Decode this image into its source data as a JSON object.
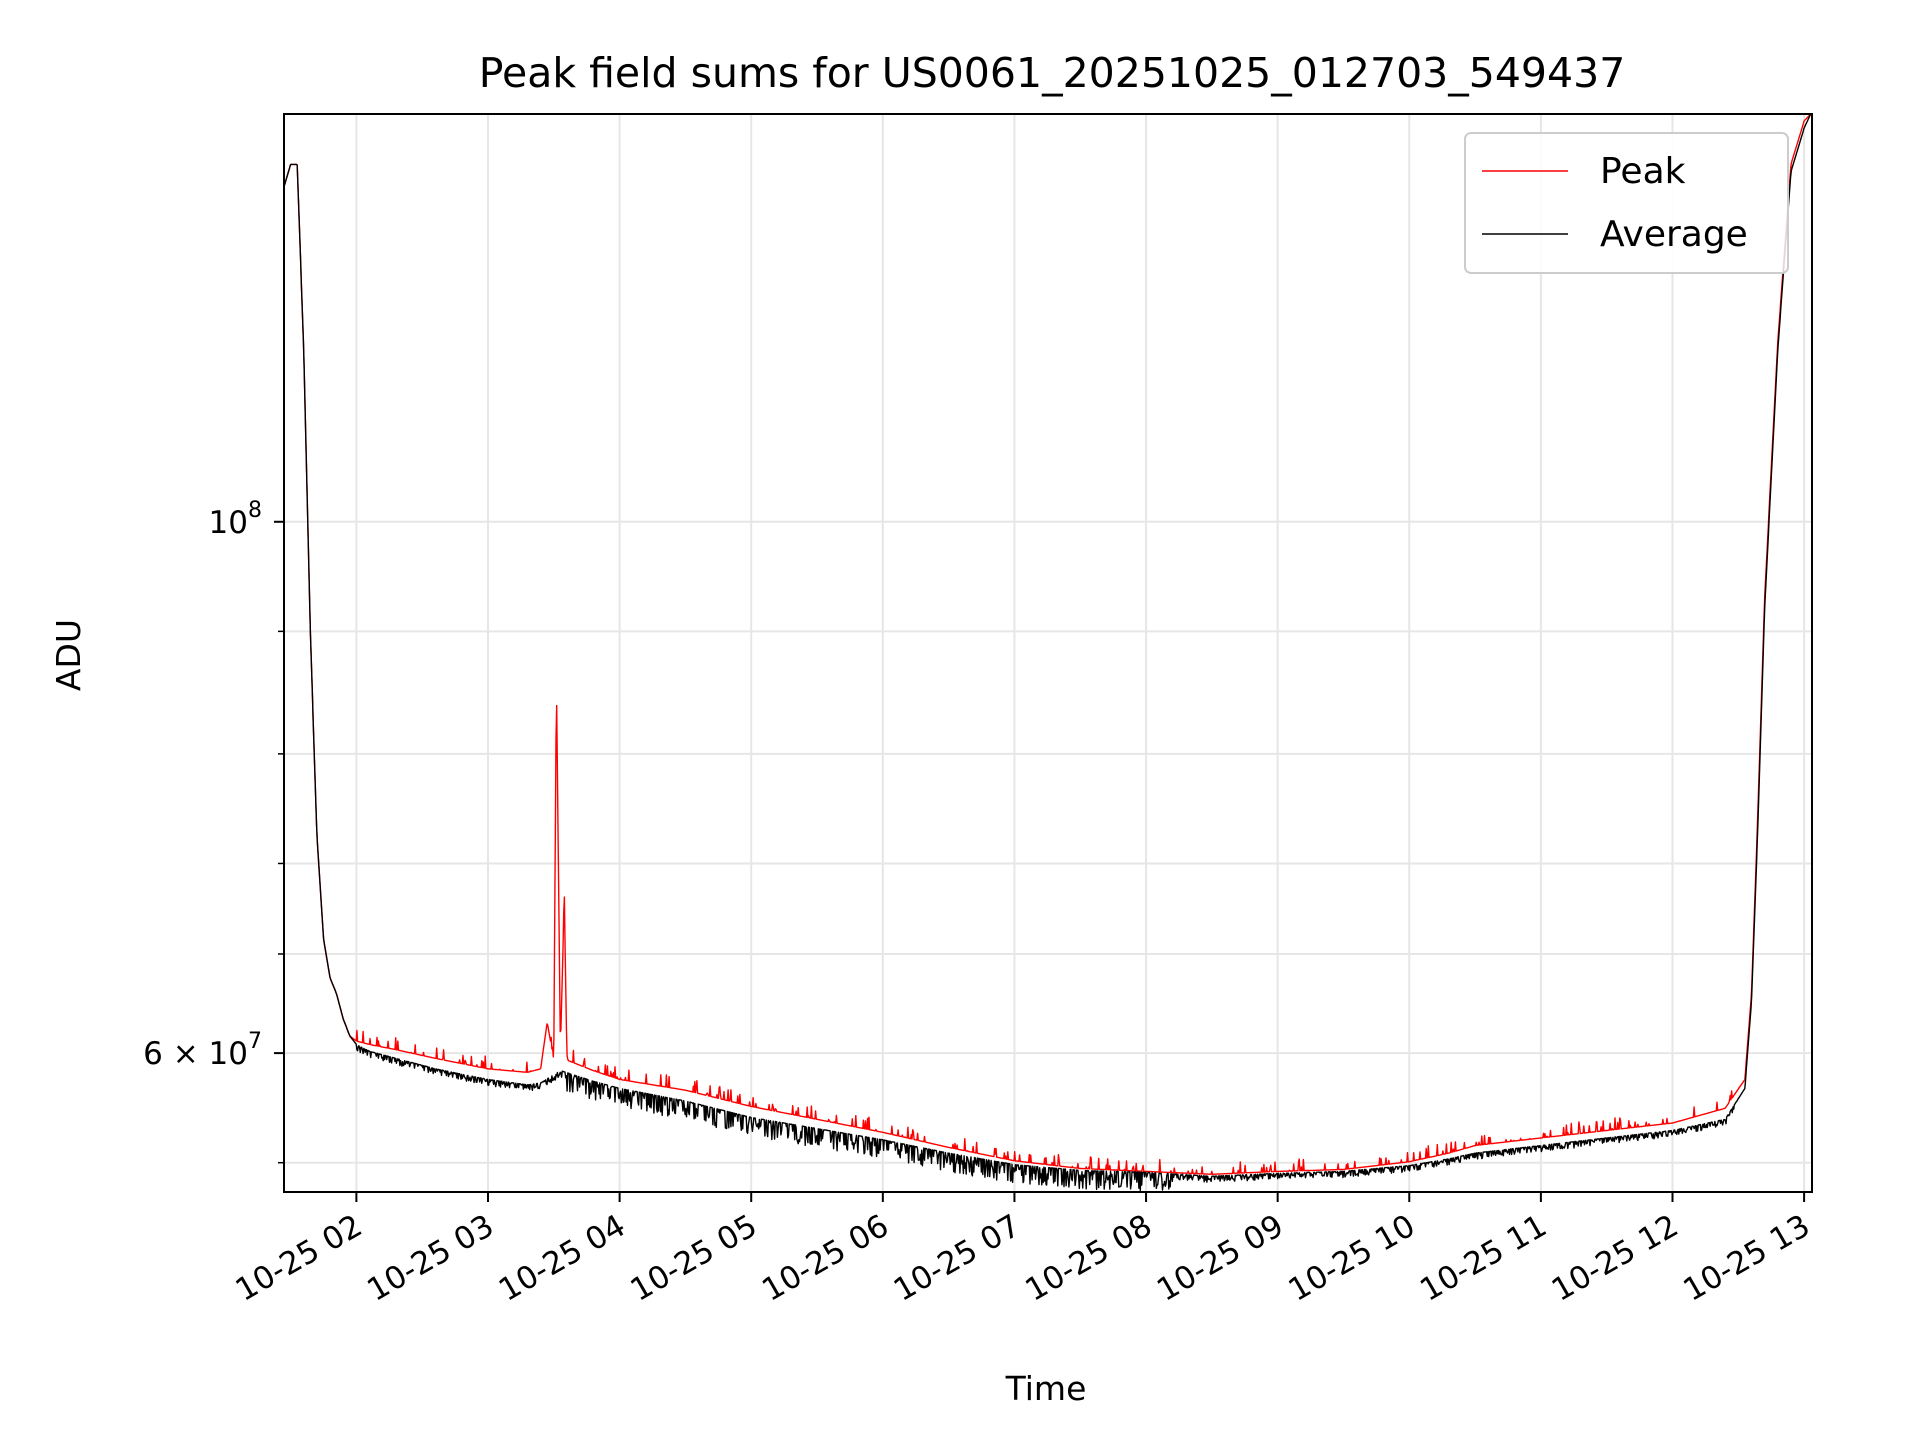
{
  "chart_data": {
    "type": "line",
    "title": "Peak field sums for US0061_20251025_012703_549437",
    "xlabel": "Time",
    "ylabel": "ADU",
    "yscale": "log",
    "xlim": [
      1.45,
      13.06
    ],
    "ylim": [
      52500000,
      148000000
    ],
    "grid": true,
    "legend": {
      "position": "top-right",
      "entries": [
        "Peak",
        "Average"
      ]
    },
    "x_ticks": [
      {
        "value": 2,
        "label": "10-25 02"
      },
      {
        "value": 3,
        "label": "10-25 03"
      },
      {
        "value": 4,
        "label": "10-25 04"
      },
      {
        "value": 5,
        "label": "10-25 05"
      },
      {
        "value": 6,
        "label": "10-25 06"
      },
      {
        "value": 7,
        "label": "10-25 07"
      },
      {
        "value": 8,
        "label": "10-25 08"
      },
      {
        "value": 9,
        "label": "10-25 09"
      },
      {
        "value": 10,
        "label": "10-25 10"
      },
      {
        "value": 11,
        "label": "10-25 11"
      },
      {
        "value": 12,
        "label": "10-25 12"
      },
      {
        "value": 13,
        "label": "10-25 13"
      }
    ],
    "y_major_ticks": [
      {
        "value": 100000000,
        "base": "10",
        "exp": "8",
        "prefix": ""
      },
      {
        "value": 60000000,
        "base": "10",
        "exp": "7",
        "prefix": "6 × "
      }
    ],
    "y_minor_ticks": [
      54000000,
      66000000,
      72000000,
      80000000,
      90000000
    ],
    "series": [
      {
        "name": "Average",
        "color": "#000000",
        "x": [
          1.45,
          1.5,
          1.55,
          1.6,
          1.65,
          1.7,
          1.75,
          1.8,
          1.85,
          1.9,
          1.95,
          2.0,
          2.1,
          2.3,
          2.6,
          3.0,
          3.3,
          3.4,
          3.55,
          3.8,
          4.0,
          4.5,
          5.0,
          5.5,
          6.0,
          6.5,
          7.0,
          7.5,
          8.0,
          8.5,
          9.0,
          9.5,
          10.0,
          10.3,
          10.5,
          11.0,
          11.5,
          12.0,
          12.4,
          12.55,
          12.6,
          12.65,
          12.7,
          12.8,
          12.9,
          13.0,
          13.05
        ],
        "y": [
          138000000,
          141000000,
          141000000,
          118000000,
          90000000,
          74000000,
          67000000,
          64500000,
          63500000,
          62000000,
          61000000,
          60500000,
          60100000,
          59700000,
          59100000,
          58500000,
          58200000,
          58300000,
          59000000,
          58400000,
          58000000,
          57300000,
          56400000,
          55800000,
          55200000,
          54500000,
          53900000,
          53600000,
          53500000,
          53300000,
          53450000,
          53550000,
          53850000,
          54200000,
          54500000,
          54900000,
          55300000,
          55700000,
          56300000,
          58000000,
          63000000,
          75000000,
          92000000,
          118000000,
          140000000,
          146000000,
          148000000
        ]
      },
      {
        "name": "Peak",
        "color": "#ff0000",
        "x": [
          1.45,
          1.5,
          1.55,
          1.6,
          1.65,
          1.7,
          1.75,
          1.8,
          1.85,
          1.9,
          1.95,
          2.0,
          2.1,
          2.3,
          2.6,
          3.0,
          3.3,
          3.4,
          3.45,
          3.5,
          3.52,
          3.55,
          3.58,
          3.6,
          3.8,
          4.0,
          4.5,
          5.0,
          5.5,
          6.0,
          6.5,
          7.0,
          7.5,
          8.0,
          8.5,
          9.0,
          9.5,
          10.0,
          10.3,
          10.5,
          11.0,
          11.5,
          12.0,
          12.4,
          12.55,
          12.6,
          12.65,
          12.7,
          12.8,
          12.9,
          13.0,
          13.05
        ],
        "y": [
          138000000,
          141000000,
          141000000,
          118000000,
          90000000,
          74000000,
          67000000,
          64500000,
          63500000,
          62000000,
          61000000,
          60700000,
          60500000,
          60200000,
          59700000,
          59100000,
          58900000,
          59100000,
          61800000,
          59600000,
          86000000,
          60200000,
          69800000,
          59600000,
          59000000,
          58500000,
          57900000,
          57000000,
          56300000,
          55600000,
          54800000,
          54100000,
          53700000,
          53550000,
          53400000,
          53550000,
          53650000,
          54050000,
          54500000,
          54900000,
          55300000,
          55700000,
          56100000,
          56900000,
          58500000,
          63500000,
          76000000,
          93000000,
          119000000,
          141000000,
          147000000,
          148000000
        ]
      }
    ]
  }
}
